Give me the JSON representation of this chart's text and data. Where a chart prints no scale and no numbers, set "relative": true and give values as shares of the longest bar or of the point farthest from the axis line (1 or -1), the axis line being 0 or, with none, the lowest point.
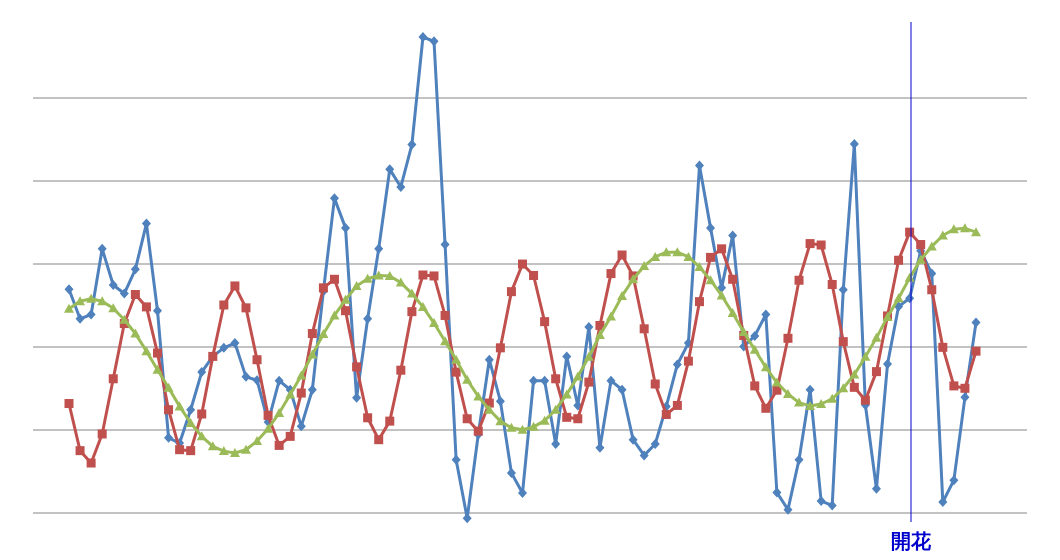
{
  "chart_data": {
    "type": "line",
    "relative": true,
    "grid": "y",
    "categories": [
      null,
      null,
      null,
      null,
      null,
      null,
      null,
      null,
      null,
      null,
      null,
      null,
      null,
      null,
      null,
      null,
      null,
      null,
      null,
      null,
      null,
      null,
      null,
      null,
      null,
      null,
      null,
      null,
      null,
      null,
      null,
      null,
      null,
      null,
      null,
      null,
      null,
      null,
      null,
      null,
      null,
      null,
      null,
      null,
      null,
      null,
      null,
      null,
      null,
      null,
      null,
      null,
      null,
      null,
      null,
      null,
      null,
      null,
      null,
      null,
      null,
      null,
      null,
      null,
      null,
      null,
      null,
      null,
      null,
      null,
      null,
      null,
      null,
      null,
      null,
      null,
      null,
      null,
      null,
      null,
      null,
      null,
      null
    ],
    "series": [
      {
        "color": "#4f81bd",
        "marker": "diamond",
        "values": [
          0.47,
          0.408,
          0.417,
          0.555,
          0.479,
          0.461,
          0.512,
          0.608,
          0.425,
          0.158,
          0.147,
          0.217,
          0.296,
          0.329,
          0.347,
          0.357,
          0.286,
          0.279,
          0.191,
          0.278,
          0.259,
          0.182,
          0.259,
          0.466,
          0.661,
          0.599,
          0.242,
          0.408,
          0.555,
          0.722,
          0.685,
          0.774,
          1.0,
          0.991,
          0.564,
          0.112,
          -0.011,
          0.165,
          0.322,
          0.235,
          0.084,
          0.042,
          0.278,
          0.278,
          0.145,
          0.329,
          0.226,
          0.391,
          0.137,
          0.278,
          0.259,
          0.154,
          0.121,
          0.145,
          0.224,
          0.312,
          0.357,
          0.73,
          0.599,
          0.473,
          0.583,
          0.35,
          0.372,
          0.417,
          0.043,
          0.007,
          0.112,
          0.259,
          0.025,
          0.016,
          0.469,
          0.775,
          0.227,
          0.051,
          0.313,
          0.434,
          0.451,
          0.551,
          0.503,
          0.023,
          0.069,
          0.243,
          0.4
        ]
      },
      {
        "color": "#c0504d",
        "marker": "square",
        "values": [
          0.23,
          0.131,
          0.105,
          0.166,
          0.282,
          0.398,
          0.459,
          0.433,
          0.336,
          0.217,
          0.133,
          0.131,
          0.208,
          0.329,
          0.437,
          0.477,
          0.431,
          0.322,
          0.205,
          0.142,
          0.161,
          0.252,
          0.377,
          0.473,
          0.491,
          0.425,
          0.307,
          0.2,
          0.154,
          0.193,
          0.3,
          0.423,
          0.5,
          0.498,
          0.415,
          0.296,
          0.198,
          0.172,
          0.231,
          0.347,
          0.465,
          0.523,
          0.499,
          0.402,
          0.282,
          0.201,
          0.198,
          0.275,
          0.394,
          0.503,
          0.542,
          0.498,
          0.387,
          0.271,
          0.207,
          0.226,
          0.319,
          0.444,
          0.537,
          0.555,
          0.491,
          0.373,
          0.267,
          0.22,
          0.258,
          0.367,
          0.489,
          0.566,
          0.563,
          0.48,
          0.36,
          0.264,
          0.237,
          0.297,
          0.414,
          0.531,
          0.59,
          0.564,
          0.469,
          0.348,
          0.267,
          0.262,
          0.34
        ]
      },
      {
        "color": "#9bbb59",
        "marker": "triangle",
        "values": [
          0.429,
          0.445,
          0.45,
          0.445,
          0.43,
          0.406,
          0.377,
          0.34,
          0.301,
          0.263,
          0.224,
          0.189,
          0.161,
          0.14,
          0.13,
          0.126,
          0.133,
          0.151,
          0.177,
          0.21,
          0.249,
          0.289,
          0.333,
          0.376,
          0.415,
          0.448,
          0.477,
          0.492,
          0.499,
          0.498,
          0.484,
          0.461,
          0.433,
          0.399,
          0.361,
          0.322,
          0.28,
          0.245,
          0.217,
          0.193,
          0.179,
          0.175,
          0.181,
          0.194,
          0.217,
          0.249,
          0.287,
          0.328,
          0.374,
          0.413,
          0.456,
          0.491,
          0.519,
          0.538,
          0.548,
          0.548,
          0.538,
          0.517,
          0.489,
          0.457,
          0.42,
          0.38,
          0.343,
          0.306,
          0.274,
          0.25,
          0.232,
          0.225,
          0.229,
          0.24,
          0.262,
          0.291,
          0.328,
          0.368,
          0.412,
          0.451,
          0.494,
          0.532,
          0.56,
          0.583,
          0.596,
          0.598,
          0.59
        ]
      }
    ],
    "annotations": [
      "開花"
    ]
  }
}
